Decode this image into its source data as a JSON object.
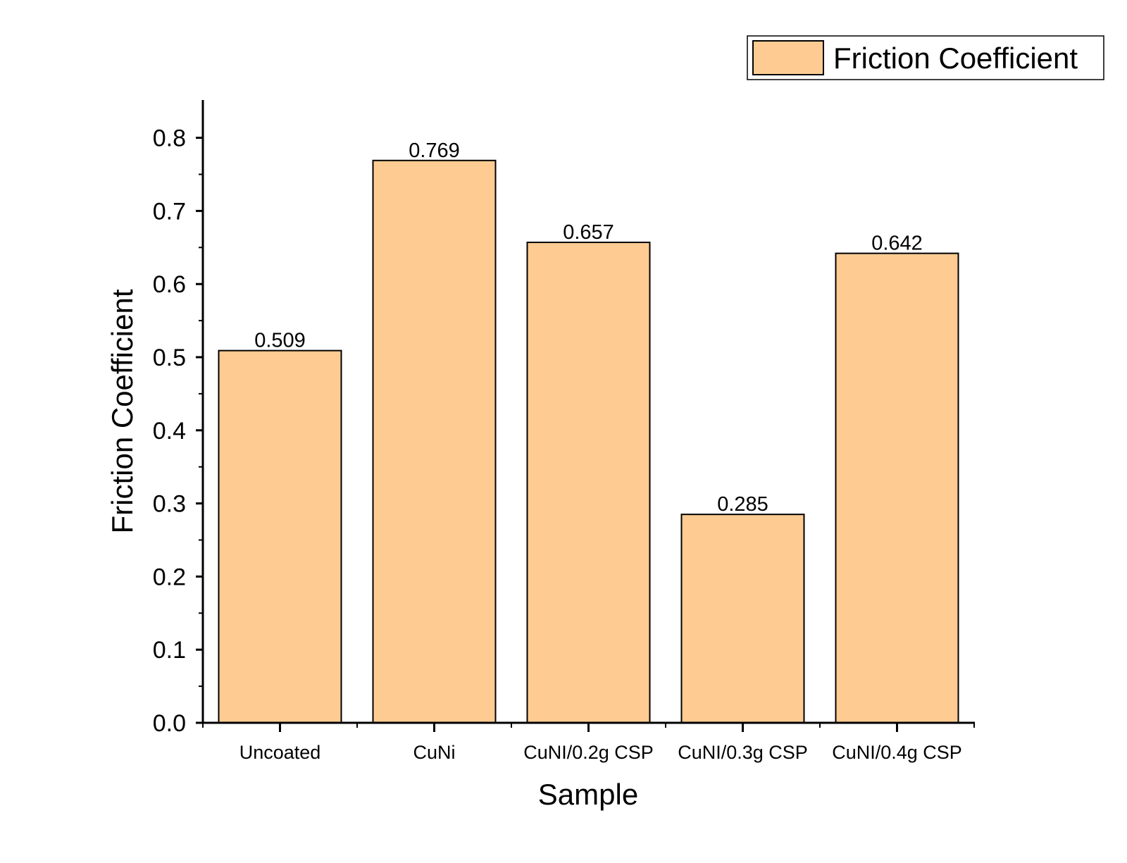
{
  "chart_data": {
    "type": "bar",
    "categories": [
      "Uncoated",
      "CuNi",
      "CuNI/0.2g CSP",
      "CuNI/0.3g CSP",
      "CuNI/0.4g CSP"
    ],
    "series": [
      {
        "name": "Friction Coefficient",
        "values": [
          0.509,
          0.769,
          0.657,
          0.285,
          0.642
        ],
        "labels": [
          "0.509",
          "0.769",
          "0.657",
          "0.285",
          "0.642"
        ]
      }
    ],
    "title": "",
    "xlabel": "Sample",
    "ylabel": "Friction Coefficient",
    "ylim": [
      0,
      0.85
    ],
    "yticks": [
      0.0,
      0.1,
      0.2,
      0.3,
      0.4,
      0.5,
      0.6,
      0.7,
      0.8
    ],
    "ytick_labels": [
      "0.0",
      "0.1",
      "0.2",
      "0.3",
      "0.4",
      "0.5",
      "0.6",
      "0.7",
      "0.8"
    ],
    "grid": false,
    "legend_position": "top-right",
    "colors": {
      "bar_fill": "#FECC93",
      "bar_stroke": "#000000",
      "axis": "#000000"
    }
  }
}
